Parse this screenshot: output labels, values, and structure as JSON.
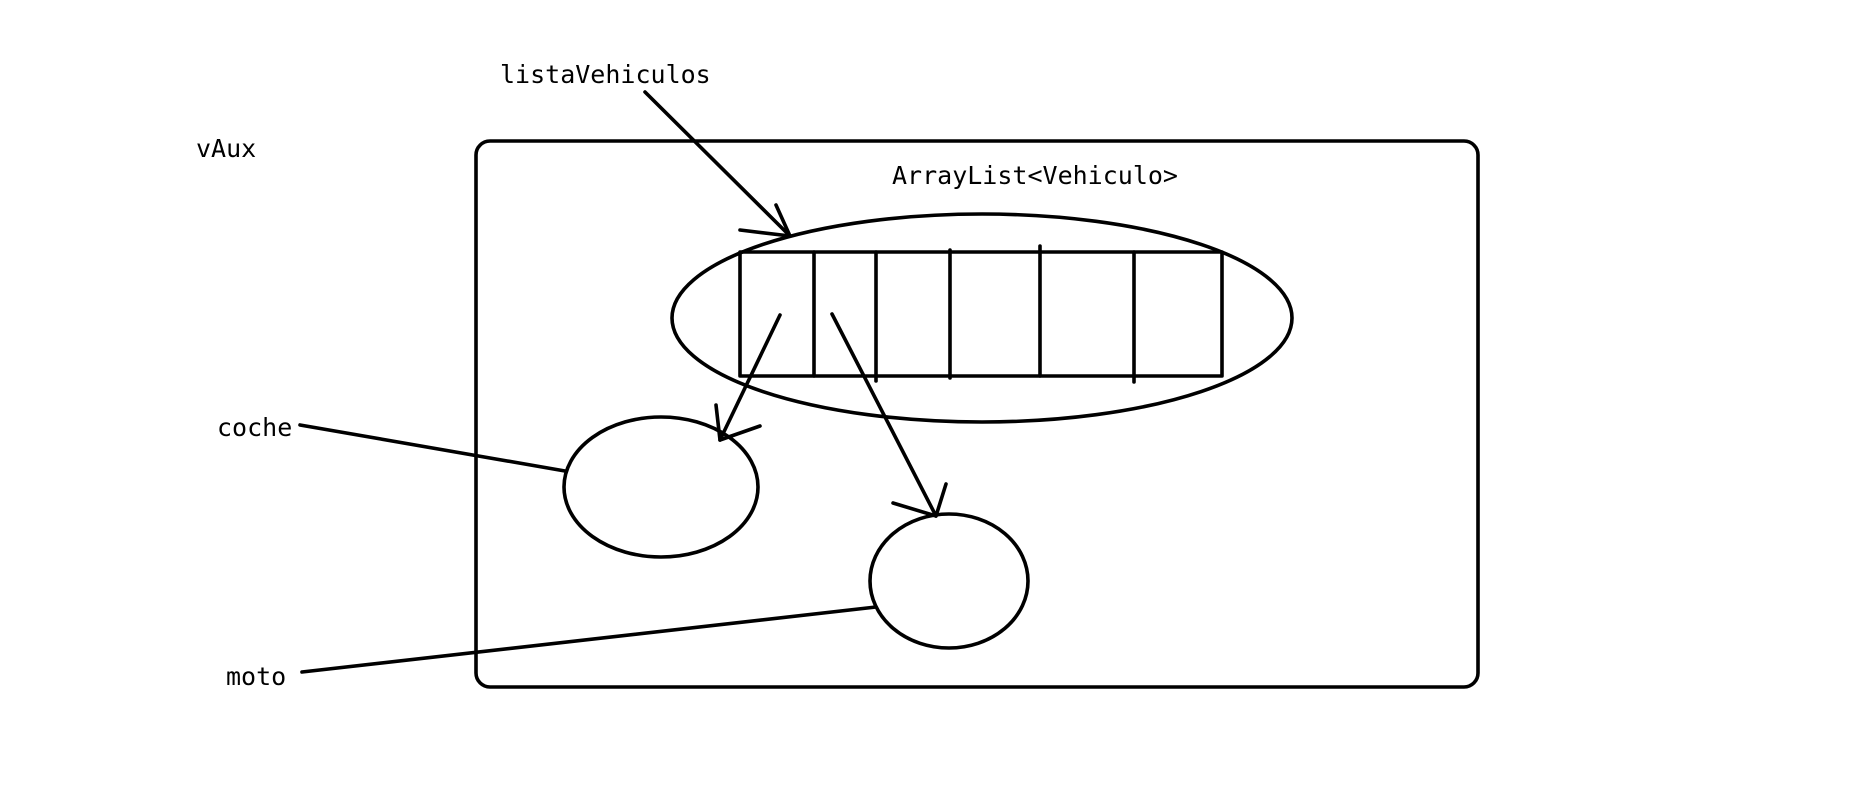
{
  "labels": {
    "lista_vehiculos": "listaVehiculos",
    "v_aux": "vAux",
    "array_list": "ArrayList<Vehiculo>",
    "coche": "coche",
    "moto": "moto"
  },
  "colors": {
    "background": "#ffffff",
    "ink": "#000000"
  }
}
